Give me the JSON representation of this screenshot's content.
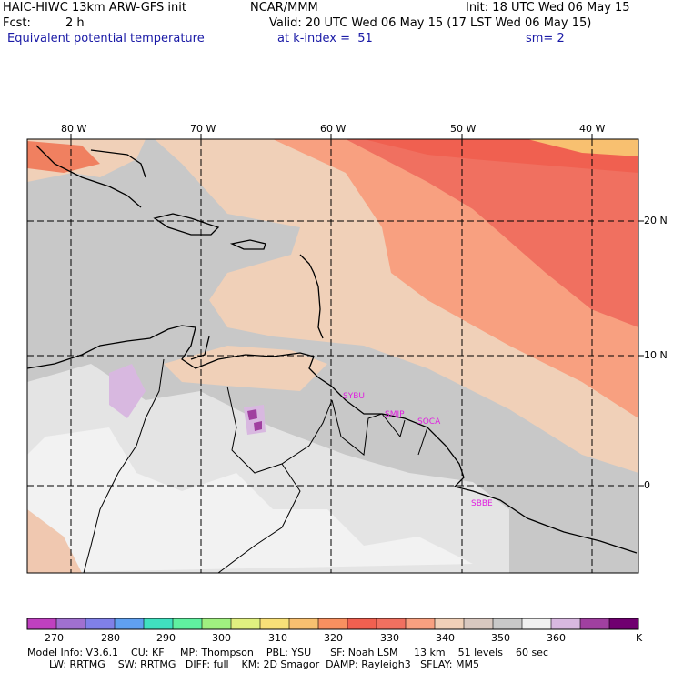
{
  "header": {
    "title_left": "HAIC-HIWC 13km ARW-GFS init",
    "org": "NCAR/MMM",
    "init": "Init: 18 UTC Wed 06 May 15",
    "fcst_label": "Fcst:",
    "fcst_value": "2 h",
    "valid": "Valid: 20 UTC Wed 06 May 15 (17 LST Wed 06 May 15)",
    "field": "Equivalent potential temperature",
    "level": "at k-index =  51",
    "smooth": "sm= 2"
  },
  "map": {
    "lon_labels": [
      "80 W",
      "70 W",
      "60 W",
      "50 W",
      "40 W"
    ],
    "lat_labels": [
      "20 N",
      "10 N",
      "0"
    ],
    "stations": [
      {
        "id": "SYBU"
      },
      {
        "id": "SMJP"
      },
      {
        "id": "SOCA"
      },
      {
        "id": "SBBE"
      }
    ],
    "station_color": "#e020e0"
  },
  "colorbar": {
    "labels": [
      "270",
      "280",
      "290",
      "300",
      "310",
      "320",
      "330",
      "340",
      "350",
      "360"
    ],
    "unit": "K",
    "colors": [
      "#c040c0",
      "#a070d0",
      "#8080e8",
      "#60a0f0",
      "#40e0c0",
      "#60f0a0",
      "#a0f080",
      "#e0f080",
      "#f8e078",
      "#f8c070",
      "#f89060",
      "#f06050",
      "#f07060",
      "#f8a080",
      "#f0d0b8",
      "#d8c8c0",
      "#c8c8c8",
      "#f0f0f0",
      "#d8b8e0",
      "#a040a0",
      "#700070"
    ]
  },
  "footer": {
    "line1": "Model Info: V3.6.1    CU: KF     MP: Thompson    PBL: YSU      SF: Noah LSM     13 km    51 levels    60 sec",
    "line2": "LW: RRTMG    SW: RRTMG   DIFF: full    KM: 2D Smagor  DAMP: Rayleigh3   SFLAY: MM5"
  }
}
